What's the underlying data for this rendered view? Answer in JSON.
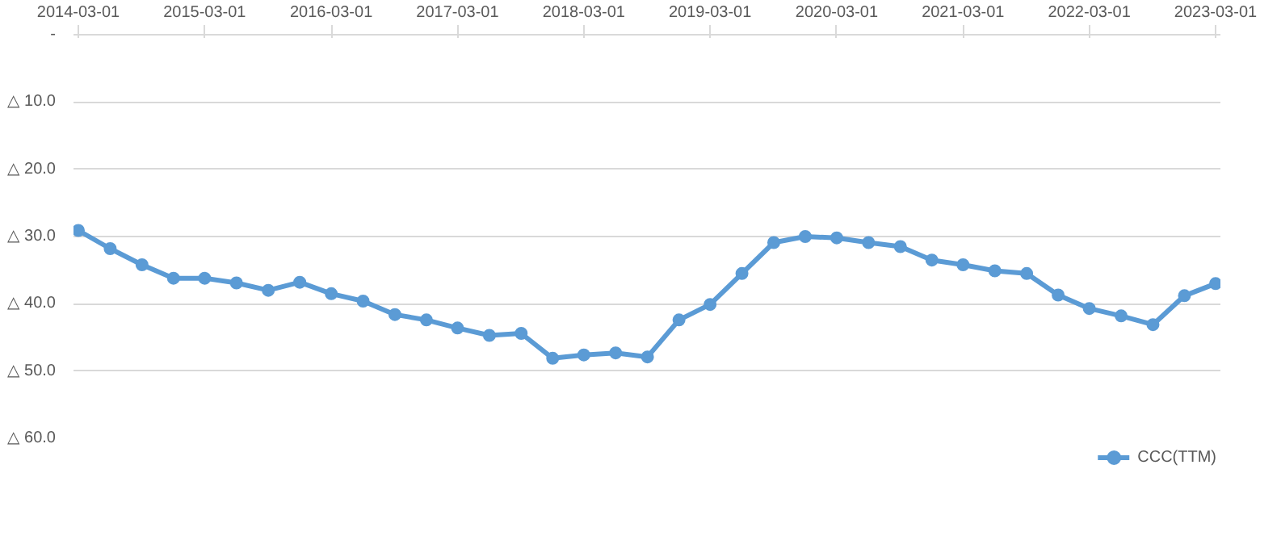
{
  "chart_data": {
    "type": "line",
    "x": [
      "2014-03-01",
      "2014-06-01",
      "2014-09-01",
      "2014-12-01",
      "2015-03-01",
      "2015-06-01",
      "2015-09-01",
      "2015-12-01",
      "2016-03-01",
      "2016-06-01",
      "2016-09-01",
      "2016-12-01",
      "2017-03-01",
      "2017-06-01",
      "2017-09-01",
      "2017-12-01",
      "2018-03-01",
      "2018-06-01",
      "2018-09-01",
      "2018-12-01",
      "2019-03-01",
      "2019-06-01",
      "2019-09-01",
      "2019-12-01",
      "2020-03-01",
      "2020-06-01",
      "2020-09-01",
      "2020-12-01",
      "2021-03-01",
      "2021-06-01",
      "2021-09-01",
      "2021-12-01",
      "2022-03-01",
      "2022-06-01",
      "2022-09-01",
      "2022-12-01",
      "2023-03-01"
    ],
    "series": [
      {
        "name": "CCC(TTM)",
        "color": "#5b9bd5",
        "values": [
          -29.1,
          -31.8,
          -34.2,
          -36.2,
          -36.2,
          -36.9,
          -38.0,
          -36.8,
          -38.5,
          -39.6,
          -41.6,
          -42.4,
          -43.6,
          -44.7,
          -44.4,
          -48.1,
          -47.6,
          -47.3,
          -47.9,
          -42.4,
          -40.1,
          -35.5,
          -30.9,
          -30.0,
          -30.2,
          -30.9,
          -31.5,
          -33.5,
          -34.2,
          -35.1,
          -35.5,
          -38.7,
          -40.7,
          -41.8,
          -43.1,
          -38.8,
          -37.0
        ]
      }
    ],
    "xlim": [
      "2014-02-15",
      "2023-03-15"
    ],
    "xticks": [
      {
        "value": "2014-03-01",
        "label": "2014-03-01"
      },
      {
        "value": "2015-03-01",
        "label": "2015-03-01"
      },
      {
        "value": "2016-03-01",
        "label": "2016-03-01"
      },
      {
        "value": "2017-03-01",
        "label": "2017-03-01"
      },
      {
        "value": "2018-03-01",
        "label": "2018-03-01"
      },
      {
        "value": "2019-03-01",
        "label": "2019-03-01"
      },
      {
        "value": "2020-03-01",
        "label": "2020-03-01"
      },
      {
        "value": "2021-03-01",
        "label": "2021-03-01"
      },
      {
        "value": "2022-03-01",
        "label": "2022-03-01"
      },
      {
        "value": "2023-03-01",
        "label": "2023-03-01"
      }
    ],
    "ylim": [
      -60,
      0
    ],
    "yticks": [
      {
        "value": 0,
        "label": "-"
      },
      {
        "value": -10,
        "label": "△ 10.0"
      },
      {
        "value": -20,
        "label": "△ 20.0"
      },
      {
        "value": -30,
        "label": "△ 30.0"
      },
      {
        "value": -40,
        "label": "△ 40.0"
      },
      {
        "value": -50,
        "label": "△ 50.0"
      },
      {
        "value": -60,
        "label": "△ 60.0"
      }
    ],
    "grid": "y",
    "legend": "bottom",
    "marker": "circle",
    "line_style": "solid"
  }
}
